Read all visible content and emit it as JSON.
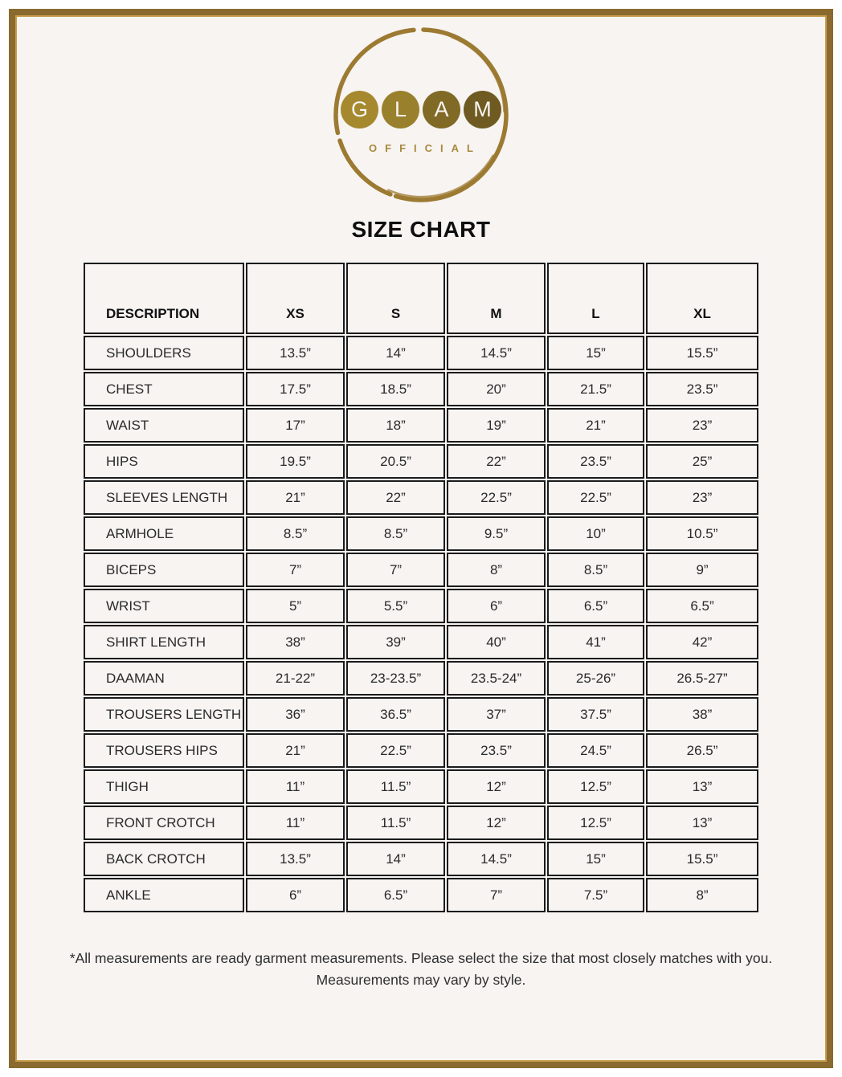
{
  "page": {
    "background_color": "#f7f4f2",
    "frame_border_color": "#8a6a2e",
    "frame_inner_line_color": "#c59e4a"
  },
  "logo": {
    "brand_letters": [
      "G",
      "L",
      "A",
      "M"
    ],
    "letter_circle_colors": [
      "#a6892f",
      "#99802c",
      "#806a26",
      "#6f5b21"
    ],
    "subtitle": "OFFICIAL",
    "brush_circle_color": "#9c7a31"
  },
  "title": "SIZE CHART",
  "table": {
    "columns": [
      "DESCRIPTION",
      "XS",
      "S",
      "M",
      "L",
      "XL"
    ],
    "rows": [
      {
        "label": "SHOULDERS",
        "values": [
          "13.5”",
          "14”",
          "14.5”",
          "15”",
          "15.5”"
        ]
      },
      {
        "label": "CHEST",
        "values": [
          "17.5”",
          "18.5”",
          "20”",
          "21.5”",
          "23.5”"
        ]
      },
      {
        "label": "WAIST",
        "values": [
          "17”",
          "18”",
          "19”",
          "21”",
          "23”"
        ]
      },
      {
        "label": "HIPS",
        "values": [
          "19.5”",
          "20.5”",
          "22”",
          "23.5”",
          "25”"
        ]
      },
      {
        "label": "SLEEVES LENGTH",
        "values": [
          "21”",
          "22”",
          "22.5”",
          "22.5”",
          "23”"
        ]
      },
      {
        "label": "ARMHOLE",
        "values": [
          "8.5”",
          "8.5”",
          "9.5”",
          "10”",
          "10.5”"
        ]
      },
      {
        "label": "BICEPS",
        "values": [
          "7”",
          "7”",
          "8”",
          "8.5”",
          "9”"
        ]
      },
      {
        "label": "WRIST",
        "values": [
          "5”",
          "5.5”",
          "6”",
          "6.5”",
          "6.5”"
        ]
      },
      {
        "label": "SHIRT LENGTH",
        "values": [
          "38”",
          "39”",
          "40”",
          "41”",
          "42”"
        ]
      },
      {
        "label": "DAAMAN",
        "values": [
          "21-22”",
          "23-23.5”",
          "23.5-24”",
          "25-26”",
          "26.5-27”"
        ]
      },
      {
        "label": "TROUSERS LENGTH",
        "values": [
          "36”",
          "36.5”",
          "37”",
          "37.5”",
          "38”"
        ]
      },
      {
        "label": "TROUSERS HIPS",
        "values": [
          "21”",
          "22.5”",
          "23.5”",
          "24.5”",
          "26.5”"
        ]
      },
      {
        "label": "THIGH",
        "values": [
          "11”",
          "11.5”",
          "12”",
          "12.5”",
          "13”"
        ]
      },
      {
        "label": "FRONT CROTCH",
        "values": [
          "11”",
          "11.5”",
          "12”",
          "12.5”",
          "13”"
        ]
      },
      {
        "label": "BACK CROTCH",
        "values": [
          "13.5”",
          "14”",
          "14.5”",
          "15”",
          "15.5”"
        ]
      },
      {
        "label": "ANKLE",
        "values": [
          "6”",
          "6.5”",
          "7”",
          "7.5”",
          "8”"
        ]
      }
    ]
  },
  "footnote": {
    "line1": "*All measurements are ready garment measurements. Please select the size that most closely matches with you.",
    "line2": "Measurements may vary by style."
  }
}
